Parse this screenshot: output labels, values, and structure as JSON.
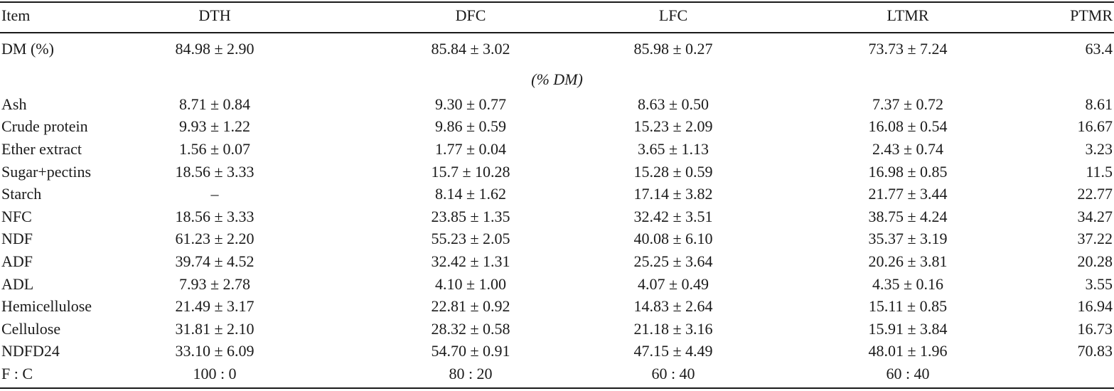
{
  "columns": [
    "Item",
    "DTH",
    "DFC",
    "LFC",
    "LTMR",
    "PTMR"
  ],
  "dm_row": {
    "label": "DM (%)",
    "values": [
      "84.98 ± 2.90",
      "85.84 ± 3.02",
      "85.98 ± 0.27",
      "73.73 ± 7.24",
      "63.4"
    ]
  },
  "unit_row": "(% DM)",
  "rows": [
    {
      "label": "Ash",
      "values": [
        "8.71 ± 0.84",
        "9.30 ± 0.77",
        "8.63 ± 0.50",
        "7.37 ± 0.72",
        "8.61"
      ]
    },
    {
      "label": "Crude protein",
      "values": [
        "9.93 ± 1.22",
        "9.86 ± 0.59",
        "15.23 ± 2.09",
        "16.08 ± 0.54",
        "16.67"
      ]
    },
    {
      "label": "Ether extract",
      "values": [
        "1.56 ± 0.07",
        "1.77 ± 0.04",
        "3.65 ± 1.13",
        "2.43 ± 0.74",
        "3.23"
      ]
    },
    {
      "label": "Sugar+pectins",
      "values": [
        "18.56 ± 3.33",
        "15.7 ± 10.28",
        "15.28 ± 0.59",
        "16.98 ± 0.85",
        "11.5"
      ]
    },
    {
      "label": "Starch",
      "values": [
        "–",
        "8.14 ± 1.62",
        "17.14 ± 3.82",
        "21.77 ± 3.44",
        "22.77"
      ]
    },
    {
      "label": "NFC",
      "values": [
        "18.56 ± 3.33",
        "23.85 ± 1.35",
        "32.42 ± 3.51",
        "38.75 ± 4.24",
        "34.27"
      ]
    },
    {
      "label": "NDF",
      "values": [
        "61.23 ± 2.20",
        "55.23 ± 2.05",
        "40.08 ± 6.10",
        "35.37 ± 3.19",
        "37.22"
      ]
    },
    {
      "label": "ADF",
      "values": [
        "39.74 ± 4.52",
        "32.42 ± 1.31",
        "25.25 ± 3.64",
        "20.26 ± 3.81",
        "20.28"
      ]
    },
    {
      "label": "ADL",
      "values": [
        "7.93 ± 2.78",
        "4.10 ± 1.00",
        "4.07 ± 0.49",
        "4.35 ± 0.16",
        "3.55"
      ]
    },
    {
      "label": "Hemicellulose",
      "values": [
        "21.49 ± 3.17",
        "22.81 ± 0.92",
        "14.83 ± 2.64",
        "15.11 ± 0.85",
        "16.94"
      ]
    },
    {
      "label": "Cellulose",
      "values": [
        "31.81 ± 2.10",
        "28.32 ± 0.58",
        "21.18 ± 3.16",
        "15.91 ± 3.84",
        "16.73"
      ]
    },
    {
      "label": "NDFD24",
      "values": [
        "33.10 ± 6.09",
        "54.70 ± 0.91",
        "47.15 ± 4.49",
        "48.01 ± 1.96",
        "70.83"
      ]
    },
    {
      "label": "F : C",
      "values": [
        "100 : 0",
        "80 : 20",
        "60 : 40",
        "60 : 40",
        ""
      ]
    }
  ]
}
